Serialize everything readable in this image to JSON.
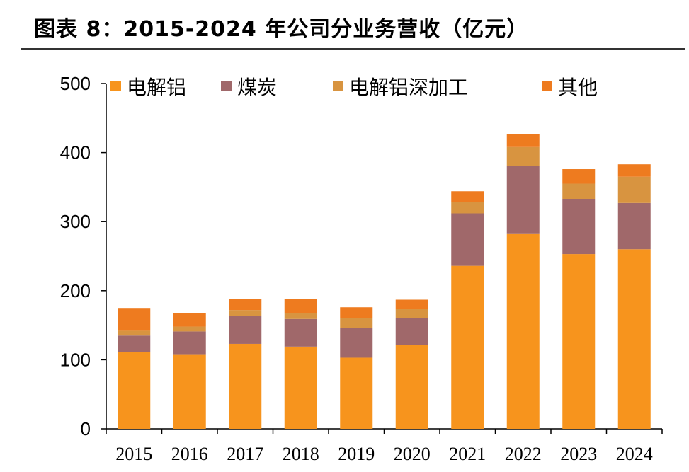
{
  "title": "图表 8：2015-2024 年公司分业务营收（亿元）",
  "chart_data": {
    "type": "bar",
    "stacked": true,
    "title": "图表 8：2015-2024 年公司分业务营收（亿元）",
    "xlabel": "",
    "ylabel": "",
    "ylim": [
      0,
      500
    ],
    "yticks": [
      0,
      100,
      200,
      300,
      400,
      500
    ],
    "ytick_labels": [
      "0",
      "100",
      "200",
      "300",
      "400",
      "500"
    ],
    "grid": false,
    "legend_position": "top",
    "categories": [
      "2015",
      "2016",
      "2017",
      "2018",
      "2019",
      "2020",
      "2021",
      "2022",
      "2023",
      "2024"
    ],
    "series": [
      {
        "name": "电解铝",
        "color": "#F7941D",
        "values": [
          111,
          108,
          123,
          119,
          103,
          121,
          236,
          283,
          253,
          260
        ]
      },
      {
        "name": "煤炭",
        "color": "#A0686A",
        "values": [
          24,
          33,
          40,
          40,
          43,
          39,
          76,
          98,
          80,
          67
        ]
      },
      {
        "name": "电解铝深加工",
        "color": "#D89440",
        "values": [
          7,
          7,
          9,
          8,
          14,
          14,
          16,
          27,
          22,
          38
        ]
      },
      {
        "name": "其他",
        "color": "#EE7B1F",
        "values": [
          33,
          20,
          16,
          21,
          16,
          13,
          16,
          19,
          21,
          18
        ]
      }
    ]
  }
}
